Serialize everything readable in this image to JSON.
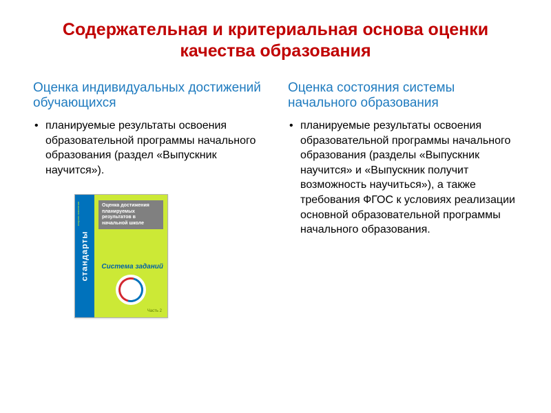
{
  "title": "Содержательная и критериальная основа оценки качества образования",
  "left": {
    "heading": "Оценка индивидуальных достижений обучающихся",
    "bullet": "планируемые результаты освоения образовательной программы начального образования (раздел «Выпускник научится»)."
  },
  "right": {
    "heading": "Оценка состояния системы начального образования",
    "bullet": "планируемые результаты освоения образовательной программы начального образования (разделы «Выпускник научится» и «Выпускник получит возможность научиться»), а также требования ФГОС к условиях реализации основной образовательной программы начального образования."
  },
  "book": {
    "spine": "стандарты",
    "spine_sub": "второго поколения",
    "cover_title": "Оценка достижения планируемых результатов в начальной школе",
    "tagline": "Система заданий",
    "part": "Часть 2",
    "colors": {
      "spine_bg": "#0072bc",
      "cover_bg": "#cce936",
      "title_bg": "#808080",
      "tagline_color": "#0062a7"
    }
  },
  "style": {
    "title_color": "#c00000",
    "subhead_color": "#1f7bbf",
    "body_color": "#000000",
    "title_fontsize": 25,
    "subhead_fontsize": 19,
    "body_fontsize": 16
  }
}
